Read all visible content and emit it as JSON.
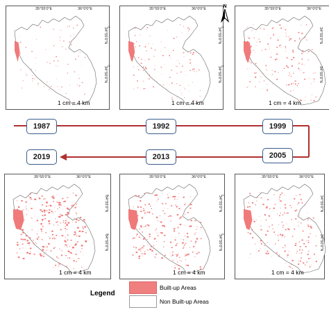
{
  "panels": [
    {
      "year": "1987",
      "scale": "1 cm = 4 km",
      "coord_top_1": "35°55'0\"E",
      "coord_top_2": "36°0'0\"E",
      "coord_side_1": "34°55'0\"N",
      "coord_side_2": "34°50'0\"N"
    },
    {
      "year": "1992",
      "scale": "1 cm = 4 km",
      "coord_top_1": "35°55'0\"E",
      "coord_top_2": "36°0'0\"E",
      "coord_side_1": "34°55'0\"N",
      "coord_side_2": "34°50'0\"N"
    },
    {
      "year": "1999",
      "scale": "1 cm = 4 km",
      "coord_top_1": "35°55'0\"E",
      "coord_top_2": "36°0'0\"E",
      "coord_side_1": "34°55'0\"N",
      "coord_side_2": "34°50'0\"N"
    },
    {
      "year": "2005",
      "scale": "1 cm = 4 km",
      "coord_top_1": "35°55'0\"E",
      "coord_top_2": "36°0'0\"E",
      "coord_side_1": "34°55'0\"N",
      "coord_side_2": "34°50'0\"N"
    },
    {
      "year": "2013",
      "scale": "1 cm = 4 km",
      "coord_top_1": "35°55'0\"E",
      "coord_top_2": "36°0'0\"E",
      "coord_side_1": "34°55'0\"N",
      "coord_side_2": "34°50'0\"N"
    },
    {
      "year": "2019",
      "scale": "1 cm = 4 km",
      "coord_top_1": "35°55'0\"E",
      "coord_top_2": "36°0'0\"E",
      "coord_side_1": "34°55'0\"N",
      "coord_side_2": "34°50'0\"N"
    }
  ],
  "north_label": "N",
  "timeline": {
    "years": [
      "1987",
      "1992",
      "1999",
      "2005",
      "2013",
      "2019"
    ]
  },
  "legend": {
    "title": "Legend",
    "items": [
      {
        "label": "Built-up Areas",
        "color": "#f08080"
      },
      {
        "label": "Non Built-up Areas",
        "color": "#ffffff"
      }
    ]
  },
  "colors": {
    "builtup": "#f07a7a",
    "arrow": "#b03030",
    "frame": "#555555",
    "box_border": "#3a5c8a"
  }
}
